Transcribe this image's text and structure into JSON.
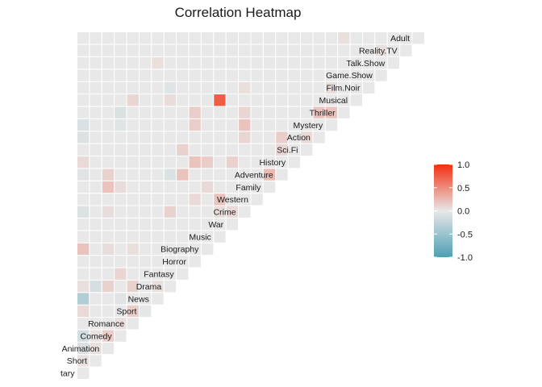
{
  "chart_data": {
    "type": "heatmap",
    "title": "Correlation Heatmap",
    "xlabel": "",
    "ylabel": "",
    "layout": "lower-triangle",
    "variables": [
      "tary",
      "Short",
      "Animation",
      "Comedy",
      "Romance",
      "Sport",
      "News",
      "Drama",
      "Fantasy",
      "Horror",
      "Biography",
      "Music",
      "War",
      "Crime",
      "Western",
      "Family",
      "Adventure",
      "History",
      "Sci.Fi",
      "Action",
      "Mystery",
      "Thriller",
      "Musical",
      "Film.Noir",
      "Game.Show",
      "Talk.Show",
      "Reality.TV",
      "Adult"
    ],
    "color_scale": {
      "low": "#4d9fb3",
      "mid": "#e8e8e8",
      "high": "#f32e10",
      "limits": [
        -1,
        1
      ],
      "ticks": [
        {
          "value": 1.0,
          "label": "1.0"
        },
        {
          "value": 0.5,
          "label": "0.5"
        },
        {
          "value": 0.0,
          "label": "0.0"
        },
        {
          "value": -0.5,
          "label": "-0.5"
        },
        {
          "value": -1.0,
          "label": "-1.0"
        }
      ]
    },
    "legend_position": "right",
    "default_value": 0,
    "cells": [
      {
        "row": "Short",
        "col": "tary",
        "value": 0.04
      },
      {
        "row": "Animation",
        "col": "Short",
        "value": 0.05
      },
      {
        "row": "Comedy",
        "col": "Short",
        "value": 0.03
      },
      {
        "row": "Comedy",
        "col": "Animation",
        "value": 0.15
      },
      {
        "row": "Romance",
        "col": "Comedy",
        "value": 0.05
      },
      {
        "row": "Romance",
        "col": "Sport",
        "value": 0.15
      },
      {
        "row": "Sport",
        "col": "Sport",
        "value": -0.02
      },
      {
        "row": "News",
        "col": "Drama",
        "value": 0.05
      },
      {
        "row": "Drama",
        "col": "tary",
        "value": -0.15
      },
      {
        "row": "Drama",
        "col": "Short",
        "value": -0.12
      },
      {
        "row": "Drama",
        "col": "Romance",
        "value": 0.12
      },
      {
        "row": "Drama",
        "col": "Animation",
        "value": 0.12
      },
      {
        "row": "Fantasy",
        "col": "Comedy",
        "value": 0.1
      },
      {
        "row": "Biography",
        "col": "Family",
        "value": 0.08
      },
      {
        "row": "Horror",
        "col": "Western",
        "value": 0.08
      },
      {
        "row": "Horror",
        "col": "History",
        "value": 0.2
      },
      {
        "row": "Horror",
        "col": "Mystery",
        "value": 0.1
      },
      {
        "row": "Music",
        "col": "Western",
        "value": 0.2
      },
      {
        "row": "Crime",
        "col": "Music",
        "value": 0.06
      },
      {
        "row": "Crime",
        "col": "War",
        "value": 0.08
      },
      {
        "row": "Family",
        "col": "Animation",
        "value": 0.2
      },
      {
        "row": "Family",
        "col": "Comedy",
        "value": 0.06
      },
      {
        "row": "Adventure",
        "col": "Animation",
        "value": 0.12
      },
      {
        "row": "Adventure",
        "col": "Fantasy",
        "value": 0.2
      },
      {
        "row": "Adventure",
        "col": "Family",
        "value": 0.25
      },
      {
        "row": "History",
        "col": "Biography",
        "value": 0.15
      },
      {
        "row": "History",
        "col": "War",
        "value": 0.12
      },
      {
        "row": "Sci.Fi",
        "col": "Fantasy",
        "value": 0.12
      },
      {
        "row": "Sci.Fi",
        "col": "Adventure",
        "value": 0.1
      },
      {
        "row": "Action",
        "col": "Crime",
        "value": 0.1
      },
      {
        "row": "Action",
        "col": "Adventure",
        "value": 0.15
      },
      {
        "row": "Action",
        "col": "Sci.Fi",
        "value": 0.08
      },
      {
        "row": "Mystery",
        "col": "Horror",
        "value": 0.15
      },
      {
        "row": "Mystery",
        "col": "Crime",
        "value": 0.2
      },
      {
        "row": "Thriller",
        "col": "Horror",
        "value": 0.15
      },
      {
        "row": "Thriller",
        "col": "Crime",
        "value": 0.1
      },
      {
        "row": "Thriller",
        "col": "Action",
        "value": 0.2
      },
      {
        "row": "Thriller",
        "col": "Mystery",
        "value": 0.2
      },
      {
        "row": "Musical",
        "col": "Music",
        "value": 0.75
      },
      {
        "row": "Musical",
        "col": "Romance",
        "value": 0.06
      },
      {
        "row": "Film.Noir",
        "col": "Crime",
        "value": 0.05
      },
      {
        "row": "Film.Noir",
        "col": "Mystery",
        "value": 0.06
      },
      {
        "row": "Talk.Show",
        "col": "News",
        "value": 0.05
      },
      {
        "row": "Reality.TV",
        "col": "Game.Show",
        "value": 0.05
      },
      {
        "row": "Adult",
        "col": "Thriller",
        "value": 0.05
      },
      {
        "row": "tary",
        "col": "Animation",
        "value": -0.1
      },
      {
        "row": "tary",
        "col": "Comedy",
        "value": -0.15
      },
      {
        "row": "tary",
        "col": "Sport",
        "value": 0.08
      },
      {
        "row": "tary",
        "col": "News",
        "value": -0.35
      },
      {
        "row": "tary",
        "col": "Drama",
        "value": 0.05
      },
      {
        "row": "tary",
        "col": "Biography",
        "value": 0.2
      },
      {
        "row": "tary",
        "col": "Crime",
        "value": -0.08
      },
      {
        "row": "tary",
        "col": "Adventure",
        "value": -0.05
      },
      {
        "row": "tary",
        "col": "History",
        "value": 0.08
      },
      {
        "row": "tary",
        "col": "Action",
        "value": -0.08
      },
      {
        "row": "tary",
        "col": "Mystery",
        "value": -0.1
      },
      {
        "row": "Animation",
        "col": "Biography",
        "value": 0.06
      },
      {
        "row": "Animation",
        "col": "Crime",
        "value": 0.06
      },
      {
        "row": "Comedy",
        "col": "News",
        "value": -0.2
      },
      {
        "row": "Comedy",
        "col": "Mystery",
        "value": -0.06
      },
      {
        "row": "Comedy",
        "col": "Thriller",
        "value": -0.1
      },
      {
        "row": "Romance",
        "col": "Biography",
        "value": 0.05
      },
      {
        "row": "Romance",
        "col": "Musical",
        "value": 0.1
      },
      {
        "row": "Drama",
        "col": "Crime",
        "value": 0.12
      },
      {
        "row": "Drama",
        "col": "Adventure",
        "value": -0.08
      },
      {
        "row": "Drama",
        "col": "Musical",
        "value": 0.06
      },
      {
        "row": "Drama",
        "col": "Film.Noir",
        "value": -0.05
      },
      {
        "row": "News",
        "col": "Comedy",
        "value": -0.05
      }
    ]
  }
}
